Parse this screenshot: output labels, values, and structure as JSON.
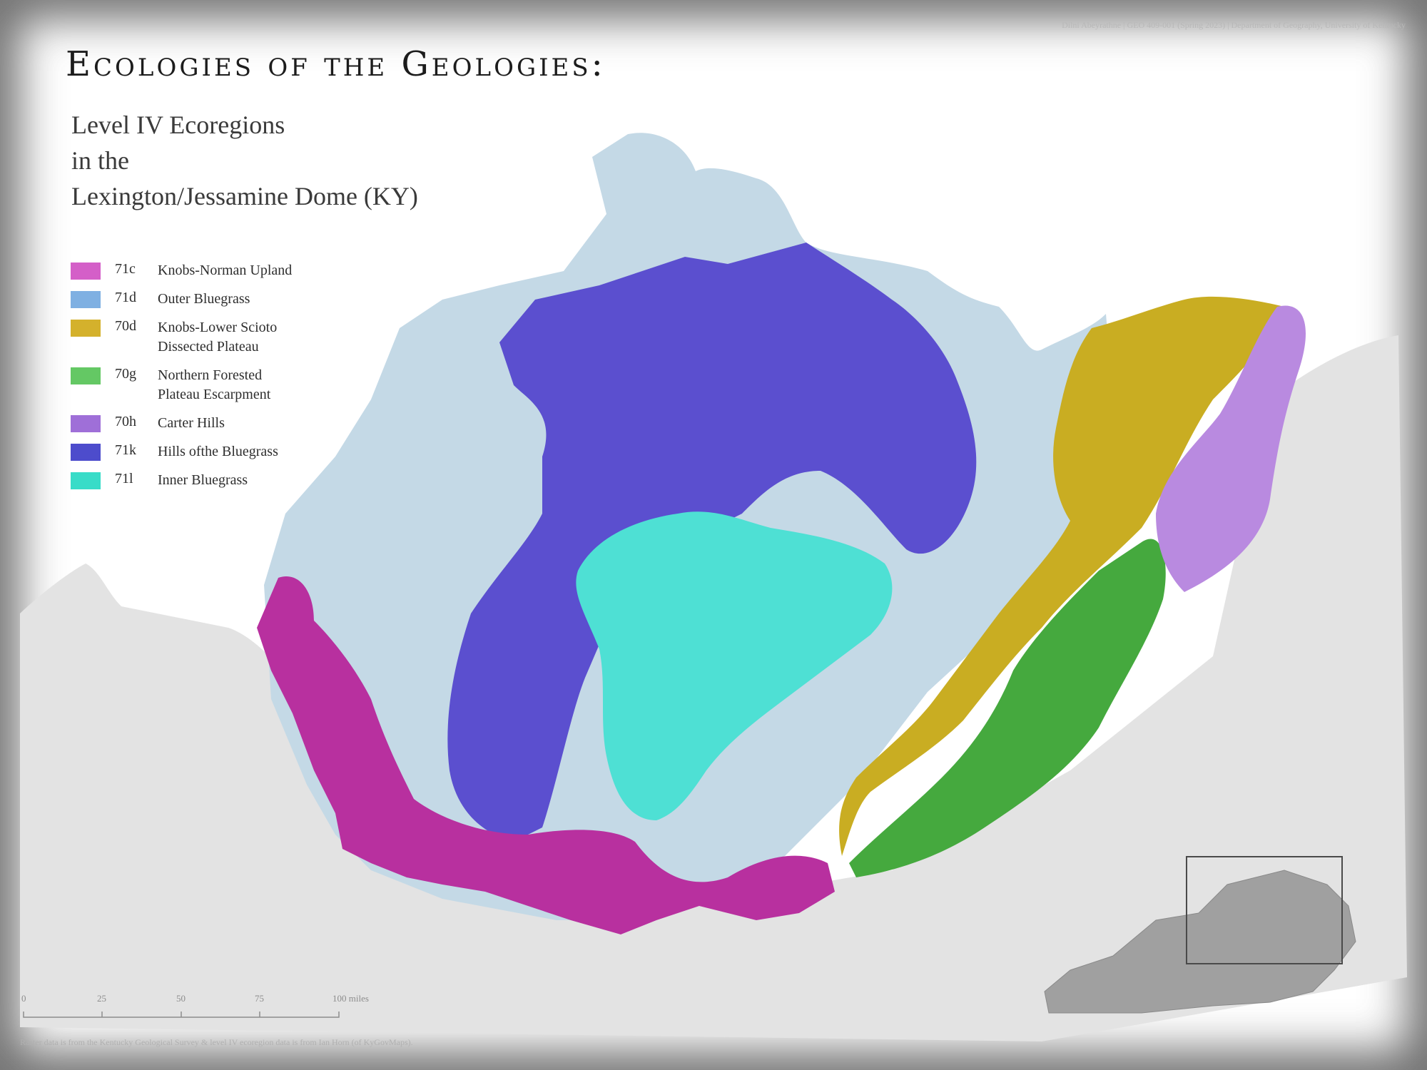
{
  "credit": "Dilni Abeyrathne | GEO 409-001 (Spring 2023) | Department of Geography, University of Kentucky",
  "title": "Ecologies of the Geologies:",
  "subtitle_lines": [
    "Level IV Ecoregions",
    "in the",
    "Lexington/Jessamine Dome (KY)"
  ],
  "legend": [
    {
      "code": "71c",
      "name": "Knobs-Norman Upland",
      "color": "#d45fc8"
    },
    {
      "code": "71d",
      "name": "Outer Bluegrass",
      "color": "#7fb0e2"
    },
    {
      "code": "70d",
      "name": "Knobs-Lower Scioto\nDissected Plateau",
      "color": "#d4b12c"
    },
    {
      "code": "70g",
      "name": "Northern Forested\nPlateau Escarpment",
      "color": "#64c864"
    },
    {
      "code": "70h",
      "name": "Carter Hills",
      "color": "#9f6fd8"
    },
    {
      "code": "71k",
      "name": "Hills ofthe Bluegrass",
      "color": "#4d4ccc"
    },
    {
      "code": "71l",
      "name": "Inner Bluegrass",
      "color": "#38dcc8"
    }
  ],
  "scale": {
    "ticks": [
      "0",
      "25",
      "50",
      "75",
      "100 miles"
    ]
  },
  "source": "Raster data is from the Kentucky Geological Survey & level IV ecoregion data is from Ian Horn (of KyGovMaps).",
  "colors": {
    "background_relief": "#e4e4e4",
    "outer_bluegrass_fill": "#c4d9e6",
    "knobs_norman_fill": "#b8309f",
    "hills_bluegrass_fill": "#5b4fcf",
    "inner_bluegrass_fill": "#4ee0d4",
    "knobs_lower_scioto_fill": "#c9ad22",
    "northern_forested_fill": "#45a93e",
    "carter_hills_fill": "#b98ae0",
    "inset_state_fill": "#a0a0a0"
  }
}
